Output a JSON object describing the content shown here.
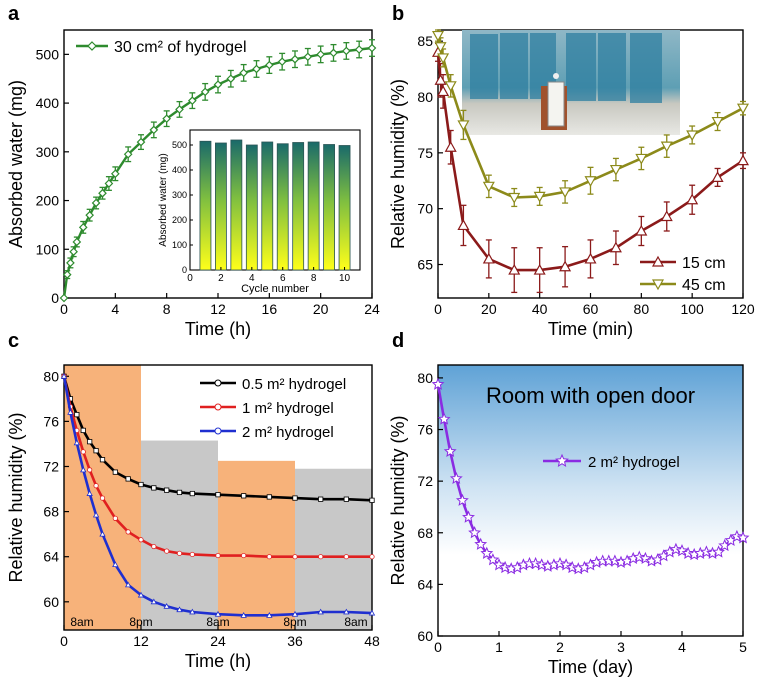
{
  "colors": {
    "a_line": "#2e8b2e",
    "b_s1": "#8b1a1a",
    "b_s2": "#8c8a1a",
    "c_black": "#000000",
    "c_red": "#e02020",
    "c_blue": "#1f2fd0",
    "c_orange": "#f7b27a",
    "c_gray": "#c8c8c8",
    "d_line": "#8a2be2",
    "d_sky": "#5fa2d6"
  },
  "photo_icon": "hydrogel-photo",
  "chart_data": [
    {
      "panel": "a",
      "type": "line",
      "xlabel": "Time (h)",
      "ylabel": "Absorbed water (mg)",
      "xlim": [
        0,
        24
      ],
      "ylim": [
        0,
        550
      ],
      "xticks": [
        0,
        4,
        8,
        12,
        16,
        20,
        24
      ],
      "yticks": [
        0,
        100,
        200,
        300,
        400,
        500
      ],
      "legend_position": "top-left",
      "series": [
        {
          "name": "30 cm² of hydrogel",
          "x": [
            0,
            0.25,
            0.5,
            0.75,
            1,
            1.5,
            2,
            2.5,
            3,
            3.5,
            4,
            5,
            6,
            7,
            8,
            9,
            10,
            11,
            12,
            13,
            14,
            15,
            16,
            17,
            18,
            19,
            20,
            21,
            22,
            23,
            24
          ],
          "y": [
            0,
            48,
            72,
            95,
            115,
            145,
            170,
            195,
            215,
            235,
            255,
            295,
            320,
            345,
            368,
            387,
            405,
            423,
            438,
            450,
            462,
            470,
            478,
            485,
            490,
            495,
            500,
            503,
            507,
            510,
            513
          ],
          "err": [
            0,
            8,
            10,
            10,
            10,
            12,
            12,
            12,
            12,
            14,
            14,
            15,
            15,
            16,
            16,
            16,
            16,
            17,
            17,
            17,
            17,
            17,
            17,
            17,
            17,
            17,
            17,
            17,
            17,
            17,
            17
          ]
        }
      ],
      "inset": {
        "type": "bar",
        "xlabel": "Cycle number",
        "ylabel": "Absorbed water (mg)",
        "xticks": [
          0,
          2,
          4,
          6,
          8,
          10
        ],
        "yticks": [
          0,
          100,
          200,
          300,
          400,
          500
        ],
        "ylim": [
          0,
          560
        ],
        "categories": [
          1,
          2,
          3,
          4,
          5,
          6,
          7,
          8,
          9,
          10
        ],
        "values": [
          515,
          508,
          520,
          500,
          512,
          505,
          510,
          512,
          502,
          498
        ]
      }
    },
    {
      "panel": "b",
      "type": "line",
      "xlabel": "Time (min)",
      "ylabel": "Relative humidity (%)",
      "xlim": [
        0,
        120
      ],
      "ylim": [
        62,
        86
      ],
      "xticks": [
        0,
        20,
        40,
        60,
        80,
        100,
        120
      ],
      "yticks": [
        65,
        70,
        75,
        80,
        85
      ],
      "legend_position": "bottom-right",
      "series": [
        {
          "name": "15 cm",
          "x": [
            0,
            1,
            2,
            5,
            10,
            20,
            30,
            40,
            50,
            60,
            70,
            80,
            90,
            100,
            110,
            120
          ],
          "y": [
            84,
            81.5,
            80.5,
            75.5,
            68.5,
            65.5,
            64.5,
            64.5,
            64.8,
            65.5,
            66.5,
            68,
            69.3,
            70.8,
            72.8,
            74.3
          ],
          "err": [
            0.8,
            1.5,
            1.5,
            1.5,
            1.8,
            1.7,
            2,
            2,
            1.8,
            1.7,
            1.5,
            1.3,
            1.3,
            1.3,
            0.8,
            0.7
          ]
        },
        {
          "name": "45 cm",
          "x": [
            0,
            1,
            2,
            5,
            10,
            20,
            30,
            40,
            50,
            60,
            70,
            80,
            90,
            100,
            110,
            120
          ],
          "y": [
            85.5,
            84.5,
            83.5,
            81,
            77.5,
            72,
            71,
            71.1,
            71.5,
            72.5,
            73.5,
            74.5,
            75.6,
            76.6,
            77.8,
            79
          ],
          "err": [
            0.5,
            0.8,
            0.8,
            1,
            1.3,
            1,
            0.8,
            0.8,
            1,
            1.2,
            1,
            1,
            1,
            0.8,
            0.8,
            0.6
          ]
        }
      ]
    },
    {
      "panel": "c",
      "type": "line",
      "xlabel": "Time (h)",
      "ylabel": "Relative humidity (%)",
      "xlim": [
        0,
        48
      ],
      "ylim": [
        57.5,
        81
      ],
      "xticks": [
        0,
        12,
        24,
        36,
        48
      ],
      "yticks": [
        60,
        64,
        68,
        72,
        76,
        80
      ],
      "legend_position": "top-right",
      "time_labels": [
        "8am",
        "8pm",
        "8am",
        "8pm",
        "8am"
      ],
      "bands": [
        {
          "x0": 0,
          "x1": 12,
          "top": 81,
          "kind": "day"
        },
        {
          "x0": 12,
          "x1": 24,
          "top": 74.3,
          "kind": "night"
        },
        {
          "x0": 24,
          "x1": 36,
          "top": 72.5,
          "kind": "day"
        },
        {
          "x0": 36,
          "x1": 48,
          "top": 71.8,
          "kind": "night"
        }
      ],
      "series": [
        {
          "name": "0.5 m² hydrogel",
          "x": [
            0,
            1,
            2,
            3,
            4,
            5,
            6,
            8,
            10,
            12,
            14,
            16,
            18,
            20,
            24,
            28,
            32,
            36,
            40,
            44,
            48
          ],
          "y": [
            80,
            78,
            76.6,
            75.2,
            74.2,
            73.4,
            72.6,
            71.5,
            70.9,
            70.4,
            70.1,
            69.9,
            69.7,
            69.6,
            69.5,
            69.4,
            69.3,
            69.2,
            69.1,
            69.1,
            69
          ]
        },
        {
          "name": "1 m² hydrogel",
          "x": [
            0,
            1,
            2,
            3,
            4,
            5,
            6,
            8,
            10,
            12,
            14,
            16,
            18,
            20,
            24,
            28,
            32,
            36,
            40,
            44,
            48
          ],
          "y": [
            80,
            77.3,
            75.2,
            73.3,
            71.7,
            70.3,
            69.2,
            67.4,
            66.2,
            65.5,
            64.9,
            64.5,
            64.3,
            64.2,
            64.1,
            64.1,
            64,
            64,
            64,
            64,
            64
          ]
        },
        {
          "name": "2 m² hydrogel",
          "x": [
            0,
            1,
            2,
            3,
            4,
            5,
            6,
            8,
            10,
            12,
            14,
            16,
            18,
            20,
            24,
            28,
            32,
            36,
            40,
            44,
            48
          ],
          "y": [
            80,
            76.8,
            74.1,
            71.7,
            69.6,
            67.7,
            66,
            63.3,
            61.5,
            60.6,
            60,
            59.6,
            59.3,
            59.1,
            58.9,
            58.8,
            58.8,
            58.9,
            59.1,
            59.1,
            59
          ]
        }
      ]
    },
    {
      "panel": "d",
      "type": "line",
      "title": "Room with open door",
      "xlabel": "Time (day)",
      "ylabel": "Relative humidity (%)",
      "xlim": [
        0,
        5
      ],
      "ylim": [
        60,
        81
      ],
      "xticks": [
        0,
        1,
        2,
        3,
        4,
        5
      ],
      "yticks": [
        60,
        64,
        68,
        72,
        76,
        80
      ],
      "legend_position": "top-center",
      "series": [
        {
          "name": "2 m² hydrogel",
          "x": [
            0,
            0.1,
            0.2,
            0.3,
            0.4,
            0.5,
            0.6,
            0.7,
            0.8,
            0.9,
            1.0,
            1.1,
            1.2,
            1.3,
            1.4,
            1.5,
            1.6,
            1.7,
            1.8,
            1.9,
            2.0,
            2.1,
            2.2,
            2.3,
            2.4,
            2.5,
            2.6,
            2.7,
            2.8,
            2.9,
            3.0,
            3.1,
            3.2,
            3.3,
            3.4,
            3.5,
            3.6,
            3.7,
            3.8,
            3.9,
            4.0,
            4.1,
            4.2,
            4.3,
            4.4,
            4.5,
            4.6,
            4.7,
            4.8,
            4.9,
            5.0
          ],
          "y": [
            79.5,
            76.8,
            74.3,
            72.2,
            70.5,
            69.2,
            68.0,
            67.1,
            66.4,
            65.9,
            65.5,
            65.3,
            65.2,
            65.3,
            65.5,
            65.6,
            65.6,
            65.5,
            65.4,
            65.5,
            65.6,
            65.5,
            65.3,
            65.2,
            65.3,
            65.5,
            65.7,
            65.8,
            65.8,
            65.8,
            65.7,
            65.8,
            66.0,
            66.1,
            66.0,
            65.8,
            65.9,
            66.2,
            66.5,
            66.7,
            66.6,
            66.4,
            66.3,
            66.4,
            66.5,
            66.4,
            66.5,
            67.0,
            67.4,
            67.7,
            67.6
          ]
        }
      ]
    }
  ],
  "panels": {
    "a": {
      "letter": "a"
    },
    "b": {
      "letter": "b"
    },
    "c": {
      "letter": "c"
    },
    "d": {
      "letter": "d"
    }
  }
}
